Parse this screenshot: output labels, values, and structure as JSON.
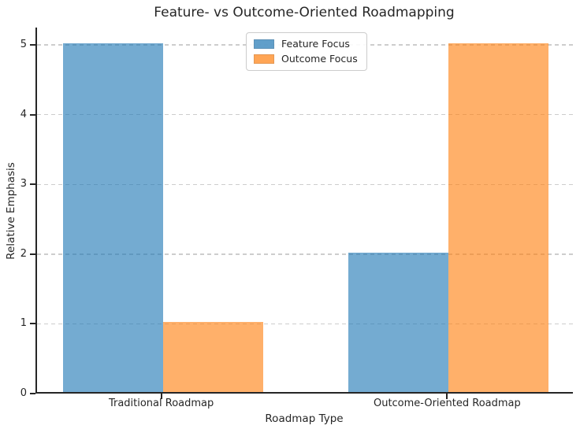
{
  "chart_data": {
    "type": "bar",
    "title": "Feature- vs Outcome-Oriented Roadmapping",
    "xlabel": "Roadmap Type",
    "ylabel": "Relative Emphasis",
    "categories": [
      "Traditional Roadmap",
      "Outcome-Oriented Roadmap"
    ],
    "series": [
      {
        "name": "Feature Focus",
        "color": "#1f77b4",
        "values": [
          5,
          2
        ]
      },
      {
        "name": "Outcome Focus",
        "color": "#ff7f0e",
        "values": [
          1,
          5
        ]
      }
    ],
    "bar_width": 0.35,
    "bar_alpha": 0.62,
    "xlim": [
      -0.44,
      1.44
    ],
    "ylim": [
      0,
      5.25
    ],
    "yticks": [
      0,
      1,
      2,
      3,
      4,
      5
    ],
    "grid": "horizontal-dashed",
    "grid_color": "#cdcdcd",
    "axis_color": "#262626",
    "legend_position": "upper-center",
    "legend_border_color": "#cccccc"
  }
}
